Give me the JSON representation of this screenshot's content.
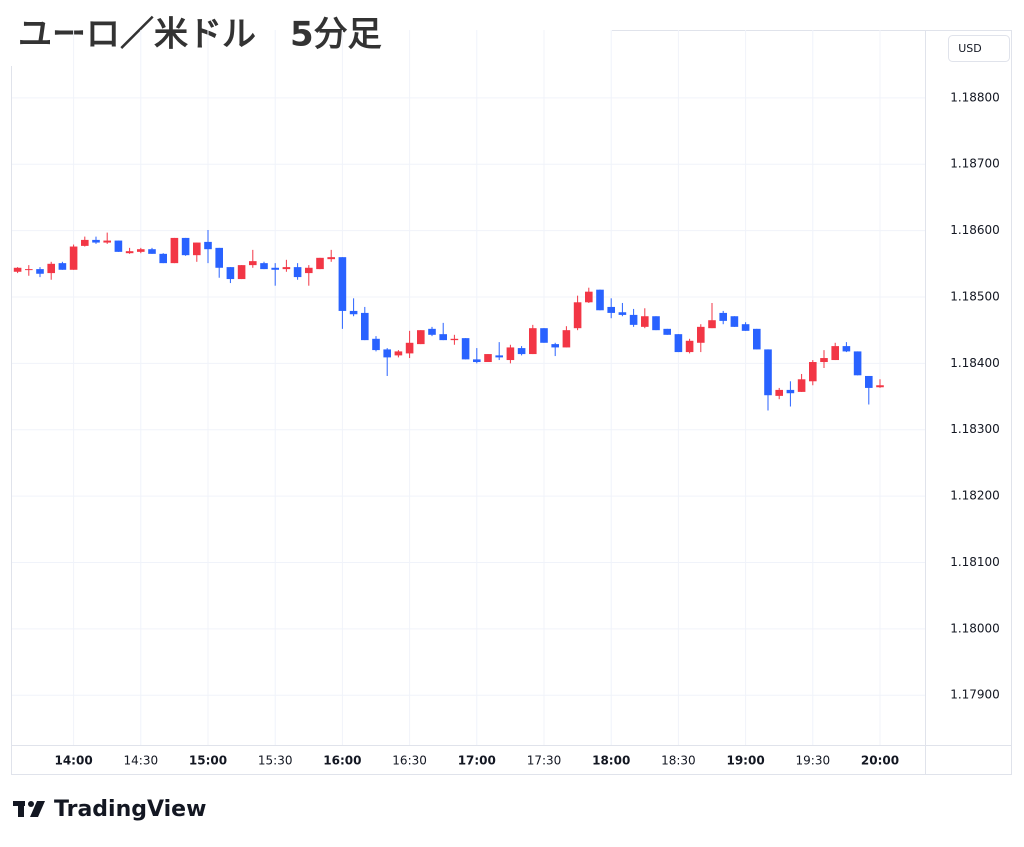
{
  "chart_data": {
    "type": "candlestick",
    "title": "ユーロ／米ドル　5分足",
    "currency_label": "USD",
    "categories": [
      null,
      null,
      null,
      null,
      null,
      "14:00",
      null,
      null,
      null,
      null,
      null,
      "14:30",
      null,
      null,
      null,
      null,
      null,
      "15:00",
      null,
      null,
      null,
      null,
      null,
      "15:30",
      null,
      null,
      null,
      null,
      null,
      "16:00",
      null,
      null,
      null,
      null,
      null,
      "16:30",
      null,
      null,
      null,
      null,
      null,
      "17:00",
      null,
      null,
      null,
      null,
      null,
      "17:30",
      null,
      null,
      null,
      null,
      null,
      "18:00",
      null,
      null,
      null,
      null,
      null,
      "18:30",
      null,
      null,
      null,
      null,
      null,
      "19:00",
      null,
      null,
      null,
      null,
      null,
      "19:30",
      null,
      null,
      null,
      null,
      null,
      "20:00"
    ],
    "open": [
      1.18538,
      1.18541,
      1.18542,
      1.18536,
      1.18551,
      1.18541,
      1.18577,
      1.18586,
      1.18582,
      1.18585,
      1.18566,
      1.18568,
      1.18572,
      1.18565,
      1.18551,
      1.18589,
      1.18563,
      1.18583,
      1.18574,
      1.18545,
      1.18527,
      1.18548,
      1.18551,
      1.18544,
      1.18542,
      1.18545,
      1.18536,
      1.18542,
      1.18557,
      1.1856,
      1.18479,
      1.18476,
      1.18437,
      1.18421,
      1.18412,
      1.18415,
      1.18429,
      1.18452,
      1.18444,
      1.18435,
      1.18438,
      1.18406,
      1.18402,
      1.18412,
      1.18405,
      1.18423,
      1.18414,
      1.18453,
      1.18429,
      1.18424,
      1.18453,
      1.18492,
      1.18511,
      1.18485,
      1.18477,
      1.18473,
      1.18455,
      1.18471,
      1.18452,
      1.18444,
      1.18417,
      1.18431,
      1.18453,
      1.18476,
      1.18471,
      1.18459,
      1.18452,
      1.18421,
      1.18351,
      1.1836,
      1.18357,
      1.18373,
      1.18402,
      1.18405,
      1.18426,
      1.18418,
      1.18381,
      1.18364
    ],
    "high": [
      1.18545,
      1.18548,
      1.18545,
      1.18553,
      1.18553,
      1.18579,
      1.18591,
      1.18591,
      1.18597,
      1.18585,
      1.18574,
      1.18574,
      1.18574,
      1.18566,
      1.18589,
      1.18589,
      1.18582,
      1.18601,
      1.18574,
      1.18545,
      1.18548,
      1.18571,
      1.18553,
      1.18551,
      1.18556,
      1.18551,
      1.18548,
      1.18559,
      1.18571,
      1.1856,
      1.18498,
      1.18485,
      1.18441,
      1.18423,
      1.1842,
      1.18449,
      1.1845,
      1.18455,
      1.18461,
      1.18443,
      1.18438,
      1.18423,
      1.18414,
      1.18432,
      1.18428,
      1.18426,
      1.18458,
      1.18453,
      1.18431,
      1.18456,
      1.18502,
      1.18514,
      1.18511,
      1.18498,
      1.18491,
      1.18482,
      1.18483,
      1.18471,
      1.18452,
      1.18444,
      1.18437,
      1.18459,
      1.18491,
      1.18479,
      1.18471,
      1.18462,
      1.18452,
      1.18421,
      1.18363,
      1.18373,
      1.18384,
      1.18405,
      1.1842,
      1.18431,
      1.18432,
      1.18418,
      1.18381,
      1.18376
    ],
    "low": [
      1.18536,
      1.18532,
      1.1853,
      1.18526,
      1.18541,
      1.18541,
      1.18576,
      1.1858,
      1.1858,
      1.18568,
      1.18565,
      1.18566,
      1.18565,
      1.18551,
      1.18551,
      1.18562,
      1.18553,
      1.18551,
      1.18529,
      1.18521,
      1.18527,
      1.18544,
      1.18542,
      1.18517,
      1.18538,
      1.18526,
      1.18517,
      1.18542,
      1.18553,
      1.18452,
      1.18471,
      1.18435,
      1.18418,
      1.18381,
      1.18409,
      1.18408,
      1.18429,
      1.18441,
      1.18435,
      1.18428,
      1.18406,
      1.184,
      1.18402,
      1.18405,
      1.184,
      1.18412,
      1.18414,
      1.18431,
      1.18411,
      1.18424,
      1.1845,
      1.18491,
      1.1848,
      1.18468,
      1.18471,
      1.18455,
      1.18453,
      1.1845,
      1.18443,
      1.18417,
      1.18415,
      1.18417,
      1.18453,
      1.18459,
      1.18455,
      1.18449,
      1.18421,
      1.18329,
      1.18346,
      1.18335,
      1.18357,
      1.18367,
      1.18393,
      1.18405,
      1.18417,
      1.18382,
      1.18338,
      1.18363
    ],
    "close": [
      1.18544,
      1.18542,
      1.18535,
      1.1855,
      1.18541,
      1.18576,
      1.18586,
      1.18582,
      1.18585,
      1.18568,
      1.18569,
      1.18572,
      1.18565,
      1.18551,
      1.18589,
      1.18563,
      1.18582,
      1.18572,
      1.18544,
      1.18527,
      1.18548,
      1.18554,
      1.18542,
      1.18541,
      1.18545,
      1.1853,
      1.18544,
      1.18559,
      1.1856,
      1.18479,
      1.18474,
      1.18435,
      1.1842,
      1.18409,
      1.18418,
      1.18431,
      1.1845,
      1.18443,
      1.18435,
      1.18437,
      1.18406,
      1.18402,
      1.18414,
      1.18409,
      1.18424,
      1.18414,
      1.18453,
      1.18431,
      1.18424,
      1.1845,
      1.18492,
      1.18508,
      1.1848,
      1.18476,
      1.18473,
      1.18458,
      1.18471,
      1.1845,
      1.18443,
      1.18417,
      1.18434,
      1.18455,
      1.18465,
      1.18464,
      1.18455,
      1.18449,
      1.18421,
      1.18352,
      1.1836,
      1.18355,
      1.18376,
      1.18402,
      1.18408,
      1.18426,
      1.18418,
      1.18382,
      1.18363,
      1.18367
    ],
    "up_color": "#f23645",
    "down_color": "#2962ff",
    "ylim": [
      1.17825,
      1.18845
    ],
    "yticks": [
      {
        "value": 1.179,
        "label": "1.17900"
      },
      {
        "value": 1.18,
        "label": "1.18000"
      },
      {
        "value": 1.181,
        "label": "1.18100"
      },
      {
        "value": 1.182,
        "label": "1.18200"
      },
      {
        "value": 1.183,
        "label": "1.18300"
      },
      {
        "value": 1.184,
        "label": "1.18400"
      },
      {
        "value": 1.185,
        "label": "1.18500"
      },
      {
        "value": 1.186,
        "label": "1.18600"
      },
      {
        "value": 1.187,
        "label": "1.18700"
      },
      {
        "value": 1.188,
        "label": "1.18800"
      }
    ],
    "grid": true,
    "brand": "TradingView"
  }
}
